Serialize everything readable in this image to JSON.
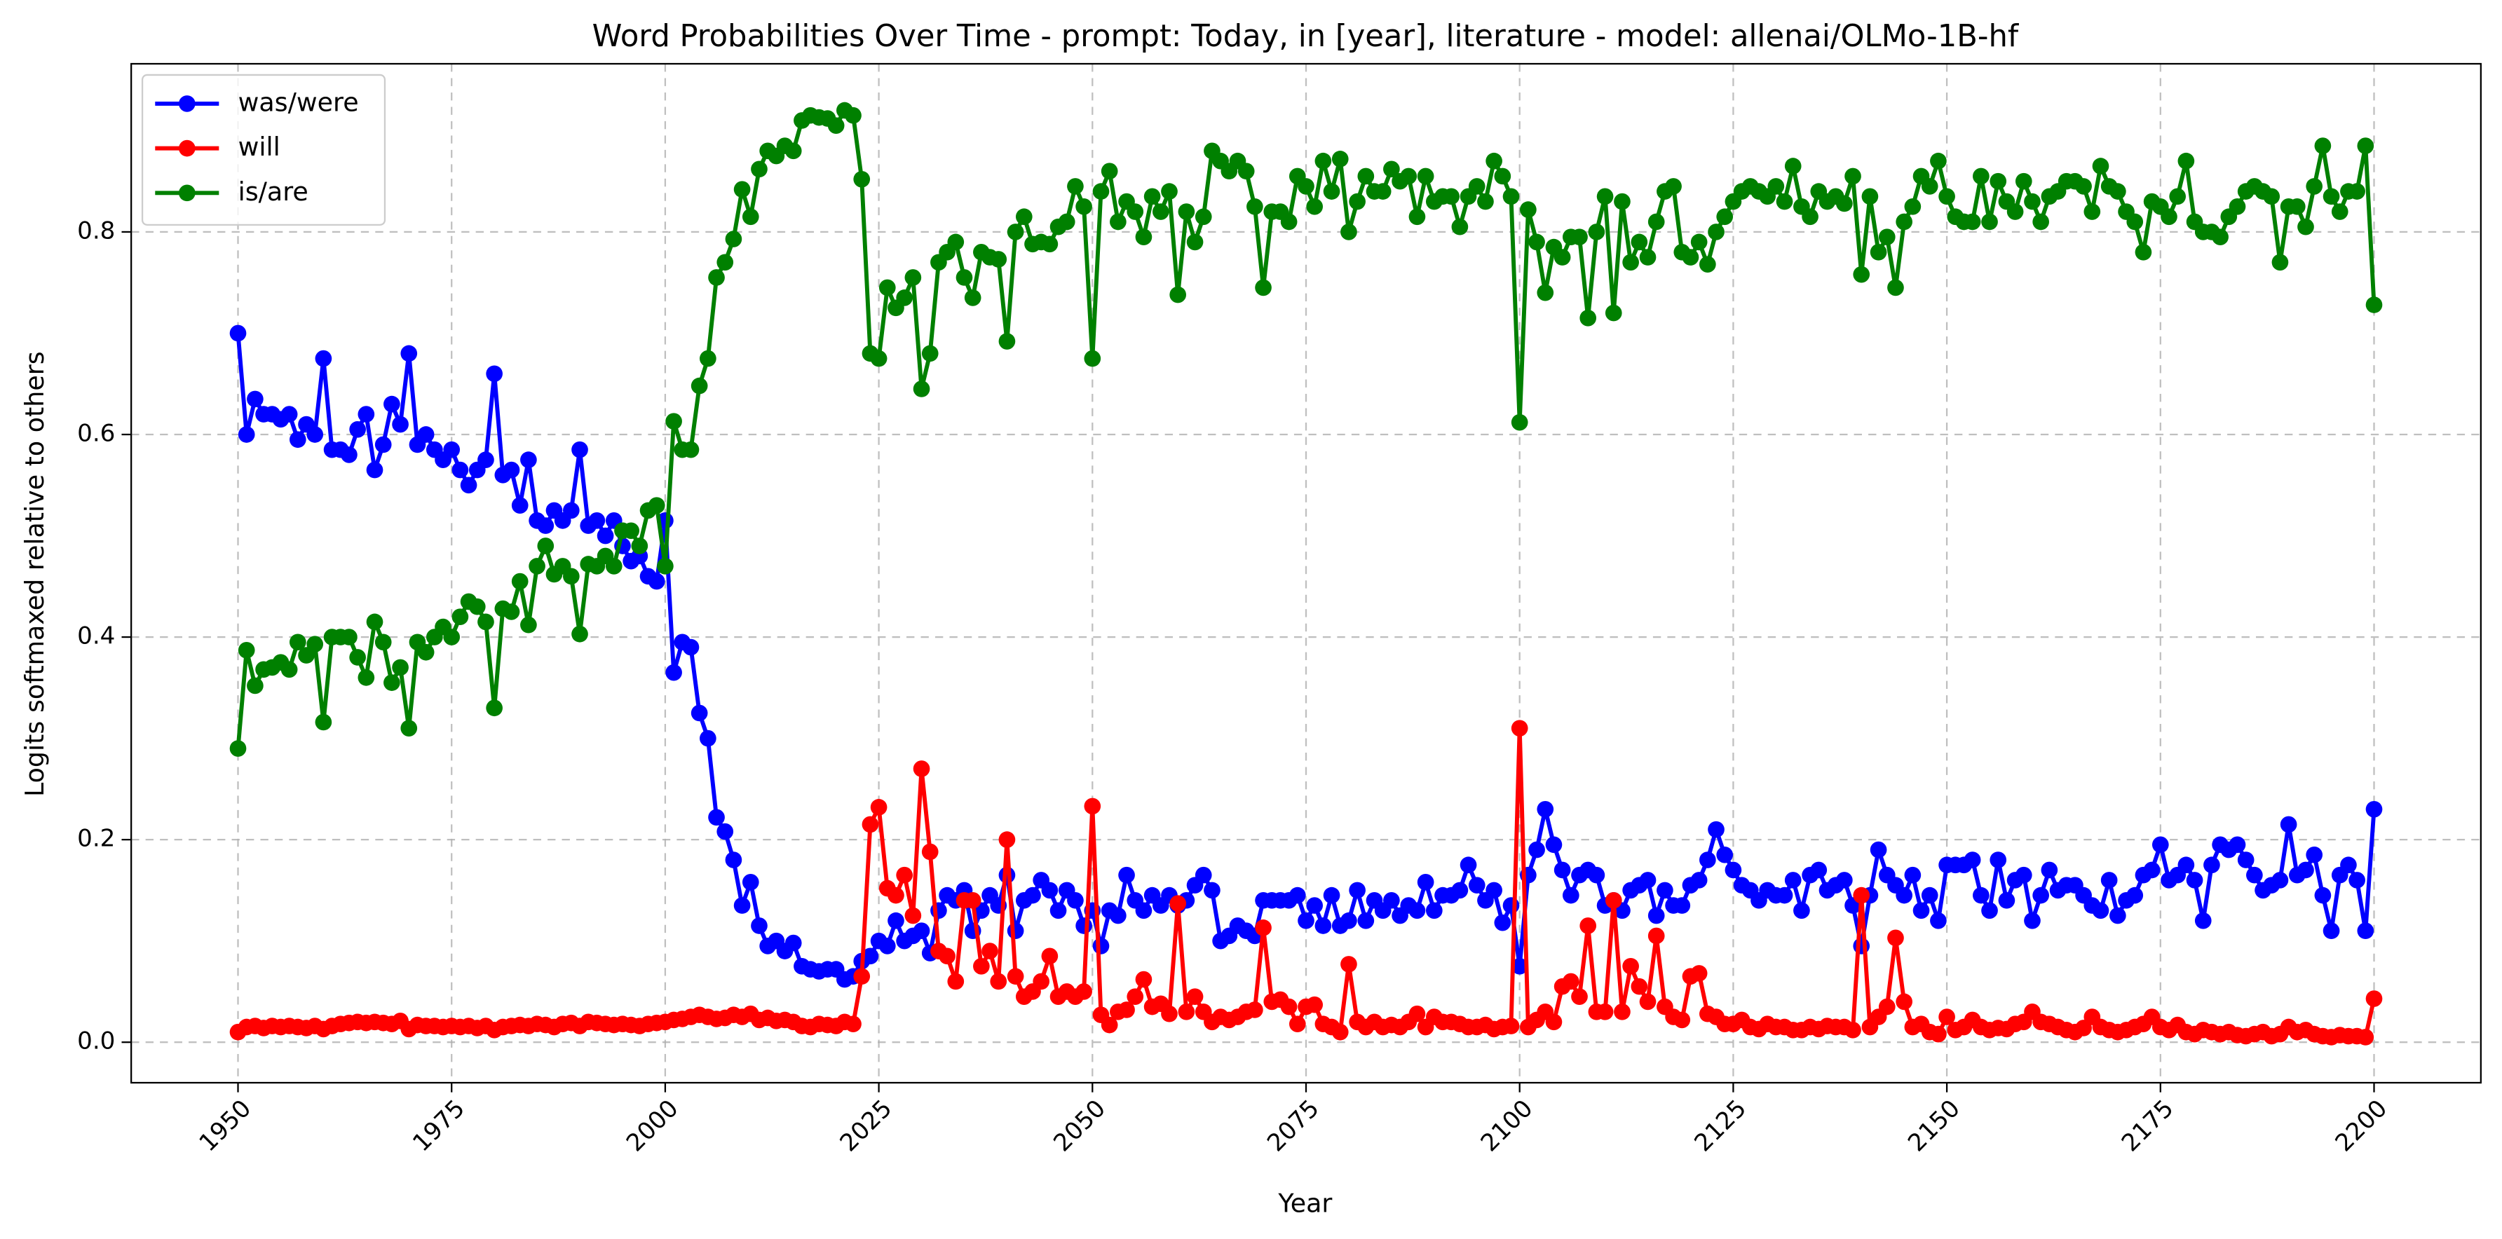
{
  "chart_data": {
    "type": "line",
    "title": "Word Probabilities Over Time - prompt: Today, in [year], literature - model: allenai/OLMo-1B-hf",
    "x_label": "Year",
    "y_label": "Logits softmaxed relative to others",
    "xlim": [
      1937.5,
      2212.5
    ],
    "ylim": [
      -0.04,
      0.966
    ],
    "xticks": [
      1950,
      1975,
      2000,
      2025,
      2050,
      2075,
      2100,
      2125,
      2150,
      2175,
      2200
    ],
    "yticks": [
      {
        "value": 0,
        "label": "0.0"
      },
      0.2,
      0.4,
      0.6,
      0.8
    ],
    "grid": true,
    "legend": "upper left",
    "x": [
      1950,
      1951,
      1952,
      1953,
      1954,
      1955,
      1956,
      1957,
      1958,
      1959,
      1960,
      1961,
      1962,
      1963,
      1964,
      1965,
      1966,
      1967,
      1968,
      1969,
      1970,
      1971,
      1972,
      1973,
      1974,
      1975,
      1976,
      1977,
      1978,
      1979,
      1980,
      1981,
      1982,
      1983,
      1984,
      1985,
      1986,
      1987,
      1988,
      1989,
      1990,
      1991,
      1992,
      1993,
      1994,
      1995,
      1996,
      1997,
      1998,
      1999,
      2000,
      2001,
      2002,
      2003,
      2004,
      2005,
      2006,
      2007,
      2008,
      2009,
      2010,
      2011,
      2012,
      2013,
      2014,
      2015,
      2016,
      2017,
      2018,
      2019,
      2020,
      2021,
      2022,
      2023,
      2024,
      2025,
      2026,
      2027,
      2028,
      2029,
      2030,
      2031,
      2032,
      2033,
      2034,
      2035,
      2036,
      2037,
      2038,
      2039,
      2040,
      2041,
      2042,
      2043,
      2044,
      2045,
      2046,
      2047,
      2048,
      2049,
      2050,
      2051,
      2052,
      2053,
      2054,
      2055,
      2056,
      2057,
      2058,
      2059,
      2060,
      2061,
      2062,
      2063,
      2064,
      2065,
      2066,
      2067,
      2068,
      2069,
      2070,
      2071,
      2072,
      2073,
      2074,
      2075,
      2076,
      2077,
      2078,
      2079,
      2080,
      2081,
      2082,
      2083,
      2084,
      2085,
      2086,
      2087,
      2088,
      2089,
      2090,
      2091,
      2092,
      2093,
      2094,
      2095,
      2096,
      2097,
      2098,
      2099,
      2100,
      2101,
      2102,
      2103,
      2104,
      2105,
      2106,
      2107,
      2108,
      2109,
      2110,
      2111,
      2112,
      2113,
      2114,
      2115,
      2116,
      2117,
      2118,
      2119,
      2120,
      2121,
      2122,
      2123,
      2124,
      2125,
      2126,
      2127,
      2128,
      2129,
      2130,
      2131,
      2132,
      2133,
      2134,
      2135,
      2136,
      2137,
      2138,
      2139,
      2140,
      2141,
      2142,
      2143,
      2144,
      2145,
      2146,
      2147,
      2148,
      2149,
      2150,
      2151,
      2152,
      2153,
      2154,
      2155,
      2156,
      2157,
      2158,
      2159,
      2160,
      2161,
      2162,
      2163,
      2164,
      2165,
      2166,
      2167,
      2168,
      2169,
      2170,
      2171,
      2172,
      2173,
      2174,
      2175,
      2176,
      2177,
      2178,
      2179,
      2180,
      2181,
      2182,
      2183,
      2184,
      2185,
      2186,
      2187,
      2188,
      2189,
      2190,
      2191,
      2192,
      2193,
      2194,
      2195,
      2196,
      2197,
      2198,
      2199,
      2200
    ],
    "series": [
      {
        "name": "was/were",
        "color": "#0000ff",
        "values": [
          0.7,
          0.6,
          0.635,
          0.62,
          0.62,
          0.615,
          0.62,
          0.595,
          0.61,
          0.6,
          0.675,
          0.585,
          0.585,
          0.58,
          0.605,
          0.62,
          0.565,
          0.59,
          0.63,
          0.61,
          0.68,
          0.59,
          0.6,
          0.585,
          0.575,
          0.585,
          0.565,
          0.55,
          0.565,
          0.575,
          0.66,
          0.56,
          0.565,
          0.53,
          0.575,
          0.515,
          0.51,
          0.525,
          0.515,
          0.525,
          0.585,
          0.51,
          0.515,
          0.5,
          0.515,
          0.49,
          0.475,
          0.48,
          0.46,
          0.455,
          0.515,
          0.365,
          0.395,
          0.39,
          0.325,
          0.3,
          0.222,
          0.208,
          0.18,
          0.135,
          0.158,
          0.115,
          0.095,
          0.1,
          0.09,
          0.098,
          0.075,
          0.072,
          0.07,
          0.072,
          0.072,
          0.062,
          0.065,
          0.08,
          0.085,
          0.1,
          0.095,
          0.12,
          0.1,
          0.105,
          0.11,
          0.088,
          0.13,
          0.145,
          0.14,
          0.15,
          0.11,
          0.13,
          0.145,
          0.135,
          0.165,
          0.11,
          0.14,
          0.145,
          0.16,
          0.15,
          0.13,
          0.15,
          0.14,
          0.115,
          0.13,
          0.095,
          0.13,
          0.125,
          0.165,
          0.14,
          0.13,
          0.145,
          0.135,
          0.145,
          0.135,
          0.14,
          0.155,
          0.165,
          0.15,
          0.1,
          0.105,
          0.115,
          0.11,
          0.105,
          0.14,
          0.14,
          0.14,
          0.14,
          0.145,
          0.12,
          0.135,
          0.115,
          0.145,
          0.115,
          0.12,
          0.15,
          0.12,
          0.14,
          0.13,
          0.14,
          0.125,
          0.135,
          0.13,
          0.158,
          0.13,
          0.145,
          0.145,
          0.15,
          0.175,
          0.155,
          0.14,
          0.15,
          0.118,
          0.135,
          0.075,
          0.165,
          0.19,
          0.23,
          0.195,
          0.17,
          0.145,
          0.165,
          0.17,
          0.165,
          0.135,
          0.14,
          0.13,
          0.15,
          0.155,
          0.16,
          0.125,
          0.15,
          0.135,
          0.135,
          0.155,
          0.16,
          0.18,
          0.21,
          0.185,
          0.17,
          0.155,
          0.15,
          0.14,
          0.15,
          0.145,
          0.145,
          0.16,
          0.13,
          0.165,
          0.17,
          0.15,
          0.155,
          0.16,
          0.135,
          0.095,
          0.145,
          0.19,
          0.165,
          0.155,
          0.145,
          0.165,
          0.13,
          0.145,
          0.12,
          0.175,
          0.175,
          0.175,
          0.18,
          0.145,
          0.13,
          0.18,
          0.14,
          0.16,
          0.165,
          0.12,
          0.145,
          0.17,
          0.15,
          0.155,
          0.155,
          0.145,
          0.135,
          0.13,
          0.16,
          0.125,
          0.14,
          0.145,
          0.165,
          0.17,
          0.195,
          0.16,
          0.165,
          0.175,
          0.16,
          0.12,
          0.175,
          0.195,
          0.19,
          0.195,
          0.18,
          0.165,
          0.15,
          0.155,
          0.16,
          0.215,
          0.165,
          0.17,
          0.185,
          0.145,
          0.11,
          0.165,
          0.175,
          0.16,
          0.11,
          0.23
        ]
      },
      {
        "name": "will",
        "color": "#ff0000",
        "values": [
          0.01,
          0.015,
          0.016,
          0.014,
          0.016,
          0.015,
          0.016,
          0.015,
          0.014,
          0.016,
          0.013,
          0.016,
          0.018,
          0.019,
          0.02,
          0.019,
          0.02,
          0.019,
          0.018,
          0.021,
          0.013,
          0.017,
          0.016,
          0.016,
          0.015,
          0.016,
          0.015,
          0.016,
          0.014,
          0.016,
          0.012,
          0.015,
          0.016,
          0.017,
          0.016,
          0.018,
          0.017,
          0.015,
          0.018,
          0.019,
          0.016,
          0.02,
          0.019,
          0.018,
          0.017,
          0.018,
          0.017,
          0.016,
          0.018,
          0.019,
          0.02,
          0.022,
          0.023,
          0.025,
          0.027,
          0.025,
          0.023,
          0.024,
          0.027,
          0.025,
          0.028,
          0.022,
          0.024,
          0.021,
          0.022,
          0.02,
          0.016,
          0.015,
          0.018,
          0.017,
          0.016,
          0.02,
          0.018,
          0.065,
          0.215,
          0.232,
          0.152,
          0.145,
          0.165,
          0.125,
          0.27,
          0.188,
          0.09,
          0.085,
          0.06,
          0.14,
          0.14,
          0.075,
          0.09,
          0.06,
          0.2,
          0.065,
          0.045,
          0.05,
          0.06,
          0.085,
          0.045,
          0.05,
          0.045,
          0.05,
          0.233,
          0.027,
          0.017,
          0.03,
          0.032,
          0.045,
          0.062,
          0.035,
          0.038,
          0.028,
          0.137,
          0.03,
          0.045,
          0.03,
          0.02,
          0.025,
          0.022,
          0.025,
          0.03,
          0.032,
          0.113,
          0.04,
          0.042,
          0.035,
          0.018,
          0.035,
          0.037,
          0.018,
          0.015,
          0.01,
          0.077,
          0.02,
          0.015,
          0.02,
          0.015,
          0.017,
          0.015,
          0.02,
          0.028,
          0.015,
          0.025,
          0.02,
          0.02,
          0.018,
          0.015,
          0.015,
          0.017,
          0.013,
          0.015,
          0.016,
          0.31,
          0.015,
          0.022,
          0.03,
          0.02,
          0.055,
          0.06,
          0.045,
          0.115,
          0.03,
          0.03,
          0.14,
          0.03,
          0.075,
          0.055,
          0.04,
          0.105,
          0.035,
          0.025,
          0.022,
          0.065,
          0.068,
          0.028,
          0.025,
          0.018,
          0.018,
          0.022,
          0.015,
          0.013,
          0.018,
          0.015,
          0.015,
          0.012,
          0.012,
          0.015,
          0.013,
          0.016,
          0.015,
          0.015,
          0.012,
          0.145,
          0.015,
          0.025,
          0.035,
          0.103,
          0.04,
          0.015,
          0.018,
          0.01,
          0.008,
          0.025,
          0.012,
          0.015,
          0.022,
          0.015,
          0.012,
          0.014,
          0.013,
          0.018,
          0.02,
          0.03,
          0.02,
          0.018,
          0.015,
          0.012,
          0.01,
          0.014,
          0.025,
          0.015,
          0.012,
          0.01,
          0.012,
          0.015,
          0.018,
          0.025,
          0.015,
          0.012,
          0.017,
          0.01,
          0.008,
          0.012,
          0.01,
          0.008,
          0.01,
          0.007,
          0.006,
          0.008,
          0.01,
          0.006,
          0.008,
          0.015,
          0.01,
          0.012,
          0.008,
          0.006,
          0.005,
          0.007,
          0.006,
          0.006,
          0.005,
          0.043
        ]
      },
      {
        "name": "is/are",
        "color": "#008000",
        "values": [
          0.29,
          0.387,
          0.352,
          0.368,
          0.37,
          0.375,
          0.368,
          0.395,
          0.382,
          0.393,
          0.316,
          0.4,
          0.4,
          0.4,
          0.38,
          0.36,
          0.415,
          0.395,
          0.355,
          0.37,
          0.31,
          0.395,
          0.385,
          0.4,
          0.41,
          0.4,
          0.42,
          0.435,
          0.43,
          0.415,
          0.33,
          0.428,
          0.425,
          0.455,
          0.412,
          0.47,
          0.49,
          0.462,
          0.47,
          0.46,
          0.403,
          0.472,
          0.47,
          0.48,
          0.47,
          0.505,
          0.505,
          0.49,
          0.525,
          0.53,
          0.47,
          0.613,
          0.585,
          0.585,
          0.648,
          0.675,
          0.755,
          0.77,
          0.793,
          0.842,
          0.815,
          0.862,
          0.88,
          0.875,
          0.885,
          0.88,
          0.91,
          0.915,
          0.913,
          0.912,
          0.905,
          0.92,
          0.915,
          0.852,
          0.68,
          0.675,
          0.745,
          0.725,
          0.735,
          0.755,
          0.645,
          0.68,
          0.77,
          0.78,
          0.79,
          0.755,
          0.735,
          0.78,
          0.775,
          0.773,
          0.692,
          0.8,
          0.815,
          0.788,
          0.79,
          0.788,
          0.805,
          0.81,
          0.845,
          0.825,
          0.675,
          0.84,
          0.86,
          0.81,
          0.83,
          0.82,
          0.795,
          0.835,
          0.82,
          0.84,
          0.738,
          0.82,
          0.79,
          0.815,
          0.88,
          0.87,
          0.86,
          0.87,
          0.86,
          0.825,
          0.745,
          0.82,
          0.82,
          0.81,
          0.855,
          0.845,
          0.825,
          0.87,
          0.84,
          0.872,
          0.8,
          0.83,
          0.855,
          0.84,
          0.84,
          0.862,
          0.85,
          0.855,
          0.815,
          0.855,
          0.83,
          0.835,
          0.835,
          0.805,
          0.835,
          0.845,
          0.83,
          0.87,
          0.855,
          0.835,
          0.612,
          0.822,
          0.79,
          0.74,
          0.785,
          0.775,
          0.795,
          0.795,
          0.715,
          0.8,
          0.835,
          0.72,
          0.83,
          0.77,
          0.79,
          0.775,
          0.81,
          0.84,
          0.845,
          0.78,
          0.775,
          0.79,
          0.768,
          0.8,
          0.815,
          0.83,
          0.84,
          0.845,
          0.84,
          0.835,
          0.845,
          0.83,
          0.865,
          0.825,
          0.815,
          0.84,
          0.83,
          0.835,
          0.828,
          0.855,
          0.758,
          0.835,
          0.78,
          0.795,
          0.745,
          0.81,
          0.825,
          0.855,
          0.845,
          0.87,
          0.835,
          0.815,
          0.81,
          0.81,
          0.855,
          0.81,
          0.85,
          0.83,
          0.82,
          0.85,
          0.83,
          0.81,
          0.835,
          0.84,
          0.85,
          0.85,
          0.845,
          0.82,
          0.865,
          0.845,
          0.84,
          0.82,
          0.81,
          0.78,
          0.83,
          0.825,
          0.815,
          0.835,
          0.87,
          0.81,
          0.8,
          0.8,
          0.795,
          0.815,
          0.825,
          0.84,
          0.845,
          0.84,
          0.835,
          0.77,
          0.825,
          0.825,
          0.805,
          0.845,
          0.885,
          0.835,
          0.82,
          0.84,
          0.84,
          0.885,
          0.728
        ]
      }
    ]
  }
}
